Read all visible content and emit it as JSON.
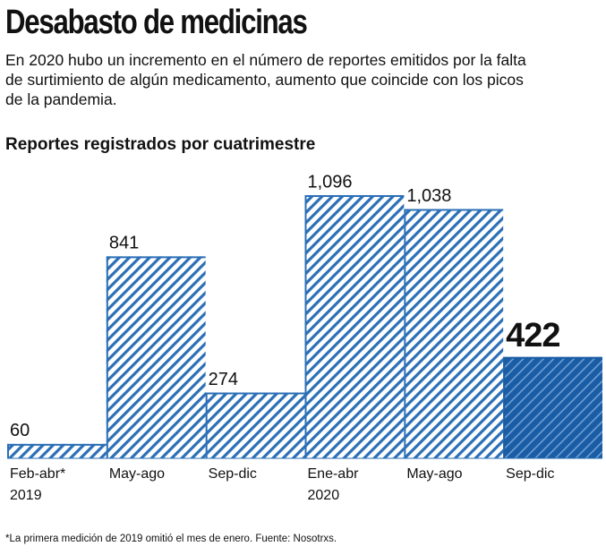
{
  "chart_data": {
    "type": "bar",
    "title": "Desabasto de medicinas",
    "subtitle": "En 2020 hubo un incremento en el número de reportes emitidos por la falta de surtimiento de algún  medicamento, aumento que coincide con los picos de la pandemia.",
    "chart_title": "Reportes registrados por cuatrimestre",
    "categories": [
      "Feb-abr*",
      "May-ago",
      "Sep-dic",
      "Ene-abr",
      "May-ago",
      "Sep-dic"
    ],
    "year_labels": [
      "2019",
      null,
      null,
      "2020",
      null,
      null
    ],
    "values": [
      60,
      841,
      274,
      1096,
      1038,
      422
    ],
    "value_labels": [
      "60",
      "841",
      "274",
      "1,096",
      "1,038",
      "422"
    ],
    "color": "#2b6fb6",
    "highlight_color": "#1b5da5",
    "highlight_index": 5,
    "note": "*La primera medición de 2019 omitió el mes de enero. Fuente: Nosotrxs."
  }
}
